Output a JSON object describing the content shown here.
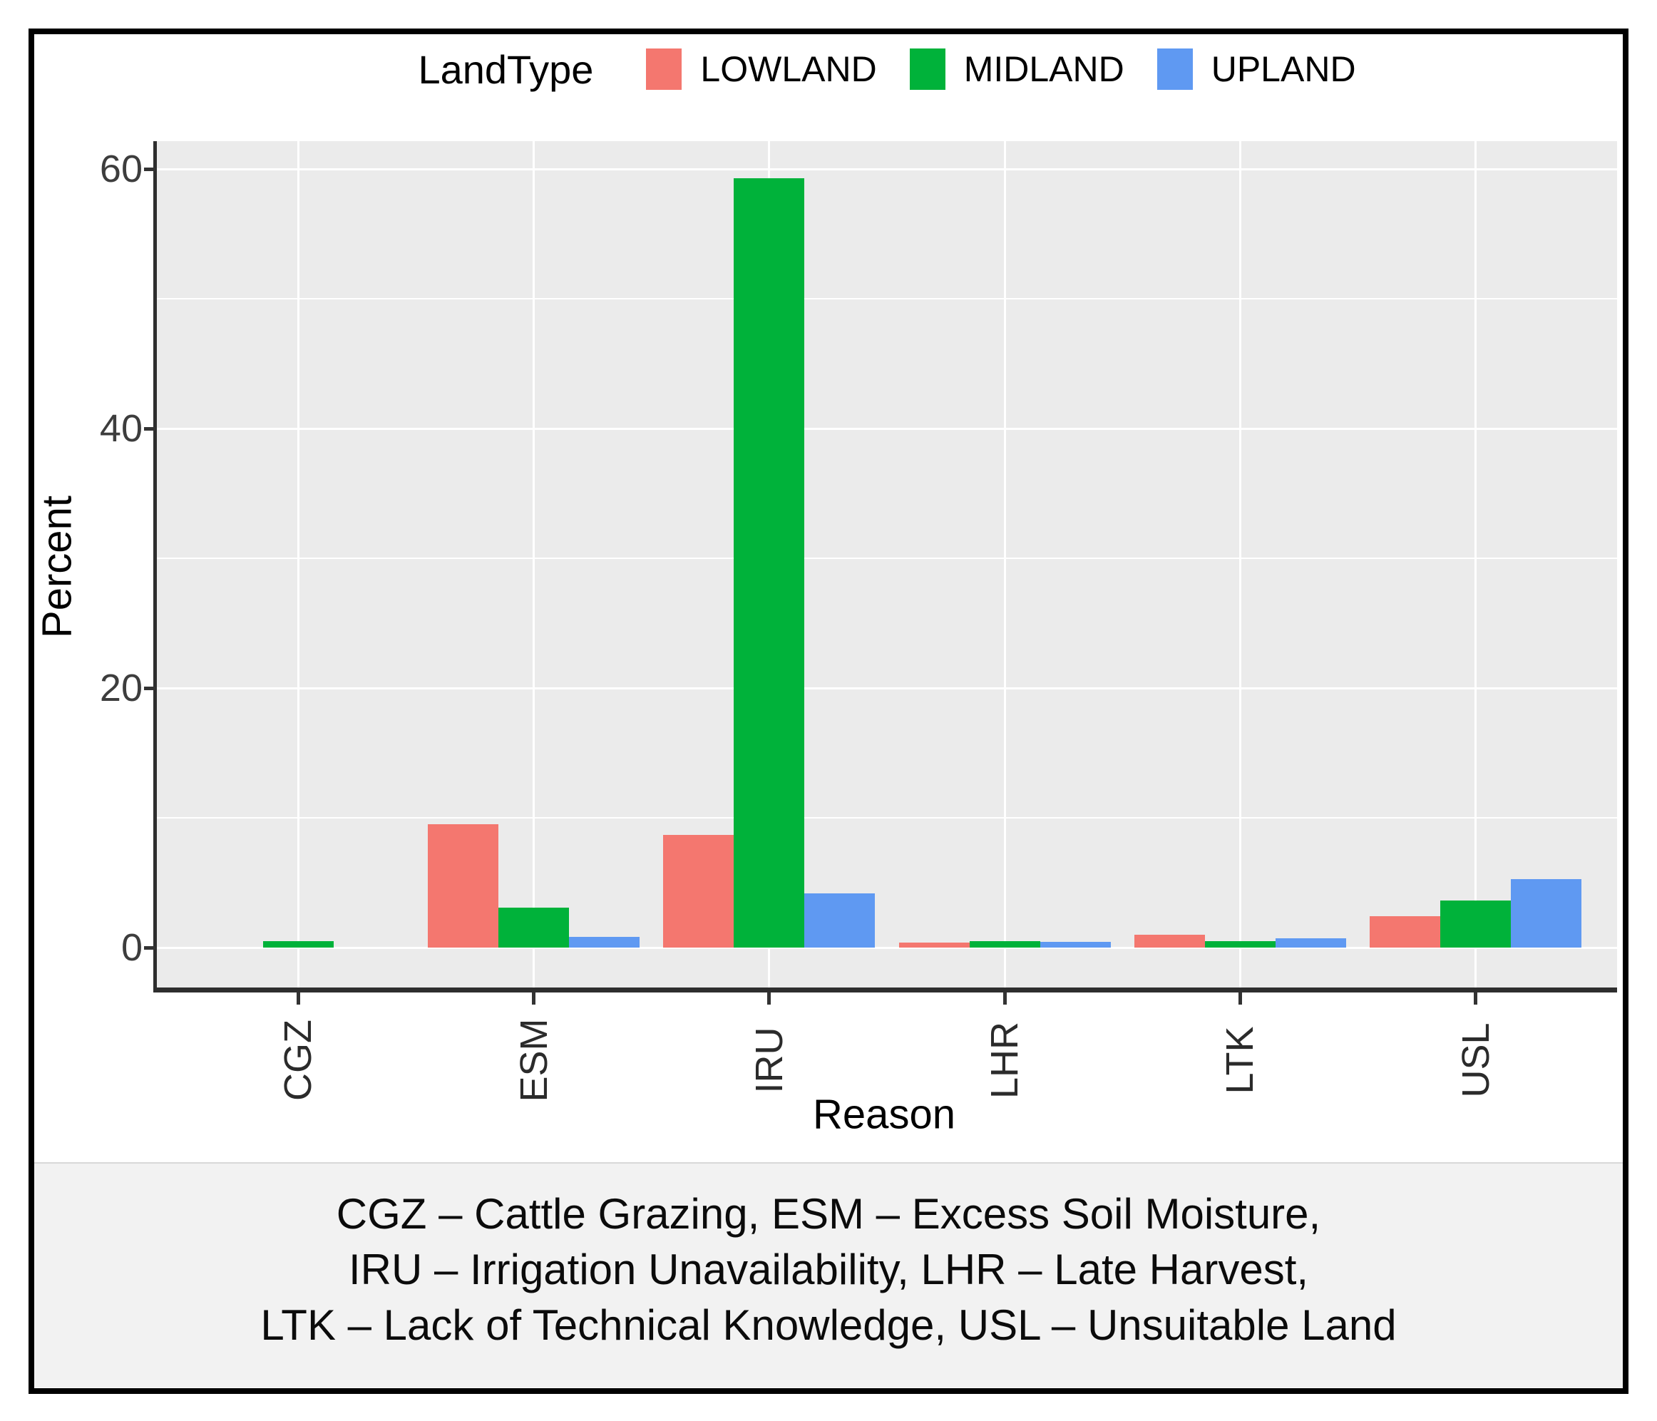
{
  "legend": {
    "title": "LandType",
    "items": [
      {
        "label": "LOWLAND",
        "color": "#F4776F"
      },
      {
        "label": "MIDLAND",
        "color": "#00B23A"
      },
      {
        "label": "UPLAND",
        "color": "#5F99F2"
      }
    ]
  },
  "chart_data": {
    "type": "bar",
    "title": "",
    "xlabel": "Reason",
    "ylabel": "Percent",
    "categories": [
      "CGZ",
      "ESM",
      "IRU",
      "LHR",
      "LTK",
      "USL"
    ],
    "series": [
      {
        "name": "LOWLAND",
        "color": "#F4776F",
        "values": [
          0,
          9.5,
          8.7,
          0.4,
          1.0,
          2.4
        ]
      },
      {
        "name": "MIDLAND",
        "color": "#00B23A",
        "values": [
          0.5,
          3.1,
          59.3,
          0.5,
          0.5,
          3.6
        ]
      },
      {
        "name": "UPLAND",
        "color": "#5F99F2",
        "values": [
          0,
          0.8,
          4.2,
          0.45,
          0.7,
          5.3
        ]
      }
    ],
    "ylim": [
      0,
      62
    ],
    "yticks": [
      0,
      20,
      40,
      60
    ],
    "yticks_minor": [
      10,
      30,
      50
    ],
    "grid": true,
    "legend_position": "top",
    "panel_background": "#EBEBEB",
    "gridline_color": "#FFFFFF",
    "axis_line_color": "#2E2E2E",
    "tick_label_color": "#3D3D3D"
  },
  "caption": {
    "lines": [
      "CGZ – Cattle Grazing, ESM – Excess Soil Moisture,",
      "IRU – Irrigation Unavailability, LHR – Late Harvest,",
      "LTK – Lack of Technical Knowledge, USL – Unsuitable Land"
    ]
  }
}
